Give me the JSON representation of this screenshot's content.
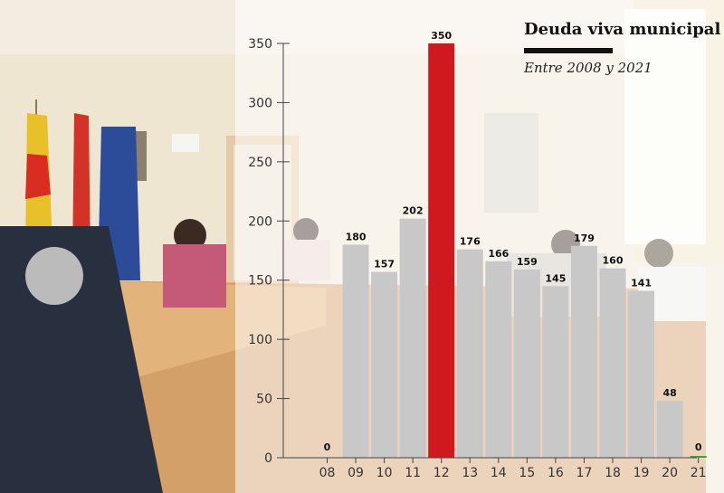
{
  "chart_data": {
    "type": "bar",
    "title": "Deuda viva municipal",
    "subtitle": "Entre 2008 y 2021",
    "xlabel": "",
    "ylabel": "",
    "ylim": [
      0,
      350
    ],
    "yticks": [
      0,
      50,
      100,
      150,
      200,
      250,
      300,
      350
    ],
    "categories": [
      "08",
      "09",
      "10",
      "11",
      "12",
      "13",
      "14",
      "15",
      "16",
      "17",
      "18",
      "19",
      "20",
      "21"
    ],
    "values": [
      0,
      180,
      157,
      202,
      350,
      176,
      166,
      159,
      145,
      179,
      160,
      141,
      48,
      0
    ],
    "data_labels": [
      "0",
      "180",
      "157",
      "202",
      "350",
      "176",
      "166",
      "159",
      "145",
      "179",
      "160",
      "141",
      "48",
      "0"
    ],
    "highlight_category": "12",
    "grid": false,
    "colors": {
      "bar": "#c8c8c8",
      "highlight": "#d0191f",
      "zero_marker": "#3aa63a",
      "axis": "#444444",
      "text": "#111111"
    }
  }
}
